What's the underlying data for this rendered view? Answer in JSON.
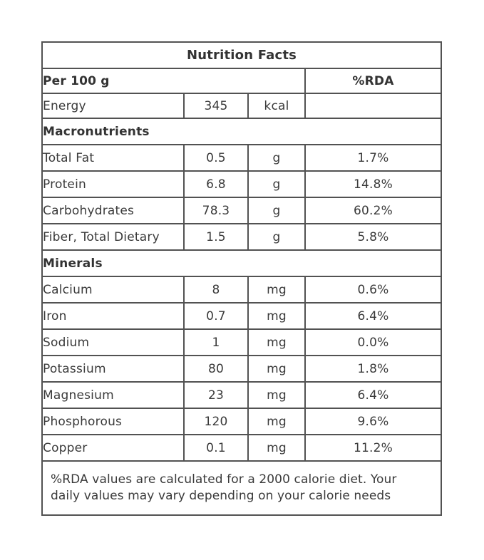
{
  "title": "Nutrition Facts",
  "header": {
    "serving_label": "Per 100 g",
    "rda_label": "%RDA"
  },
  "energy": {
    "name": "Energy",
    "value": "345",
    "unit": "kcal",
    "rda": ""
  },
  "sections": [
    {
      "heading": "Macronutrients",
      "rows": [
        {
          "name": "Total Fat",
          "value": "0.5",
          "unit": "g",
          "rda": "1.7%"
        },
        {
          "name": "Protein",
          "value": "6.8",
          "unit": "g",
          "rda": "14.8%"
        },
        {
          "name": "Carbohydrates",
          "value": "78.3",
          "unit": "g",
          "rda": "60.2%"
        },
        {
          "name": "Fiber, Total Dietary",
          "value": "1.5",
          "unit": "g",
          "rda": "5.8%"
        }
      ]
    },
    {
      "heading": "Minerals",
      "rows": [
        {
          "name": "Calcium",
          "value": "8",
          "unit": "mg",
          "rda": "0.6%"
        },
        {
          "name": "Iron",
          "value": "0.7",
          "unit": "mg",
          "rda": "6.4%"
        },
        {
          "name": "Sodium",
          "value": "1",
          "unit": "mg",
          "rda": "0.0%"
        },
        {
          "name": "Potassium",
          "value": "80",
          "unit": "mg",
          "rda": "1.8%"
        },
        {
          "name": "Magnesium",
          "value": "23",
          "unit": "mg",
          "rda": "6.4%"
        },
        {
          "name": "Phosphorous",
          "value": "120",
          "unit": "mg",
          "rda": "9.6%"
        },
        {
          "name": "Copper",
          "value": "0.1",
          "unit": "mg",
          "rda": "11.2%"
        }
      ]
    }
  ],
  "footnote": "%RDA values are calculated for a 2000 calorie diet. Your daily values may vary depending on your calorie needs",
  "colors": {
    "border": "#525252",
    "text": "#3a3a3a",
    "background": "#ffffff"
  }
}
